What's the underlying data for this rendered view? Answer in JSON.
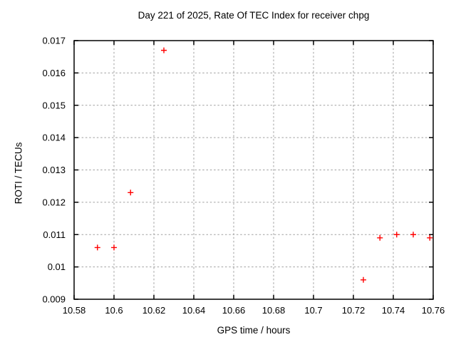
{
  "chart_data": {
    "type": "scatter",
    "title": "Day 221 of 2025, Rate Of TEC Index for receiver chpg",
    "xlabel": "GPS time / hours",
    "ylabel": "ROTI / TECUs",
    "xlim": [
      10.58,
      10.76
    ],
    "ylim": [
      0.009,
      0.017
    ],
    "xticks": [
      10.58,
      10.6,
      10.62,
      10.64,
      10.66,
      10.68,
      10.7,
      10.72,
      10.74,
      10.76
    ],
    "xtick_labels": [
      "10.58",
      "10.6",
      "10.62",
      "10.64",
      "10.66",
      "10.68",
      "10.7",
      "10.72",
      "10.74",
      "10.76"
    ],
    "yticks": [
      0.009,
      0.01,
      0.011,
      0.012,
      0.013,
      0.014,
      0.015,
      0.016,
      0.017
    ],
    "ytick_labels": [
      "0.009",
      "0.01",
      "0.011",
      "0.012",
      "0.013",
      "0.014",
      "0.015",
      "0.016",
      "0.017"
    ],
    "grid": true,
    "legend": "none",
    "marker": {
      "shape": "plus",
      "color": "#ff0000",
      "size": 8,
      "stroke_width": 1.4
    },
    "colors": {
      "axis": "#000000",
      "grid": "#a0a0a0",
      "text": "#000000",
      "background": "#ffffff"
    },
    "series": [
      {
        "name": "ROTI",
        "points": [
          [
            10.5917,
            0.0106
          ],
          [
            10.6,
            0.0106
          ],
          [
            10.6083,
            0.0123
          ],
          [
            10.625,
            0.0167
          ],
          [
            10.725,
            0.0096
          ],
          [
            10.7333,
            0.0109
          ],
          [
            10.7417,
            0.011
          ],
          [
            10.75,
            0.011
          ],
          [
            10.7583,
            0.0109
          ]
        ]
      }
    ]
  }
}
